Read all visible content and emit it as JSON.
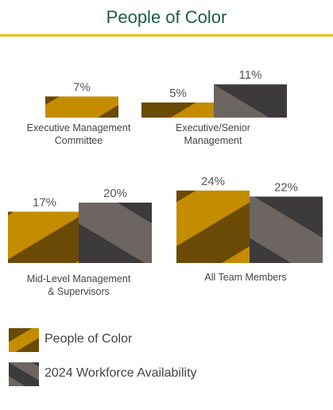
{
  "title": "People of Color",
  "colors": {
    "accent_rule": "#e8c21a",
    "title": "#1d5c45",
    "poc_dark": "#6b4a06",
    "poc_light": "#c48d00",
    "workforce_dark": "#3c3a3a",
    "workforce_light": "#6d6562"
  },
  "chart_data": {
    "type": "bar",
    "unit": "%",
    "series": [
      {
        "name": "People of Color",
        "values": [
          7,
          5,
          17,
          24
        ],
        "labels": [
          "7%",
          "5%",
          "17%",
          "24%"
        ]
      },
      {
        "name": "2024 Workforce Availability",
        "values": [
          null,
          11,
          20,
          22
        ],
        "labels": [
          "",
          "11%",
          "20%",
          "22%"
        ]
      }
    ],
    "categories": [
      {
        "name": "Executive Management Committee",
        "lines": [
          "Executive Management",
          "Committee"
        ]
      },
      {
        "name": "Executive/Senior Management",
        "lines": [
          "Executive/Senior",
          "Management"
        ]
      },
      {
        "name": "Mid-Level Management & Supervisors",
        "lines": [
          "Mid-Level Management",
          "& Supervisors"
        ]
      },
      {
        "name": "All Team Members",
        "lines": [
          "All Team Members"
        ]
      }
    ],
    "legend_placement": "bottom-left",
    "grid": false
  },
  "legend": [
    {
      "label": "People of Color"
    },
    {
      "label": "2024 Workforce Availability"
    }
  ]
}
